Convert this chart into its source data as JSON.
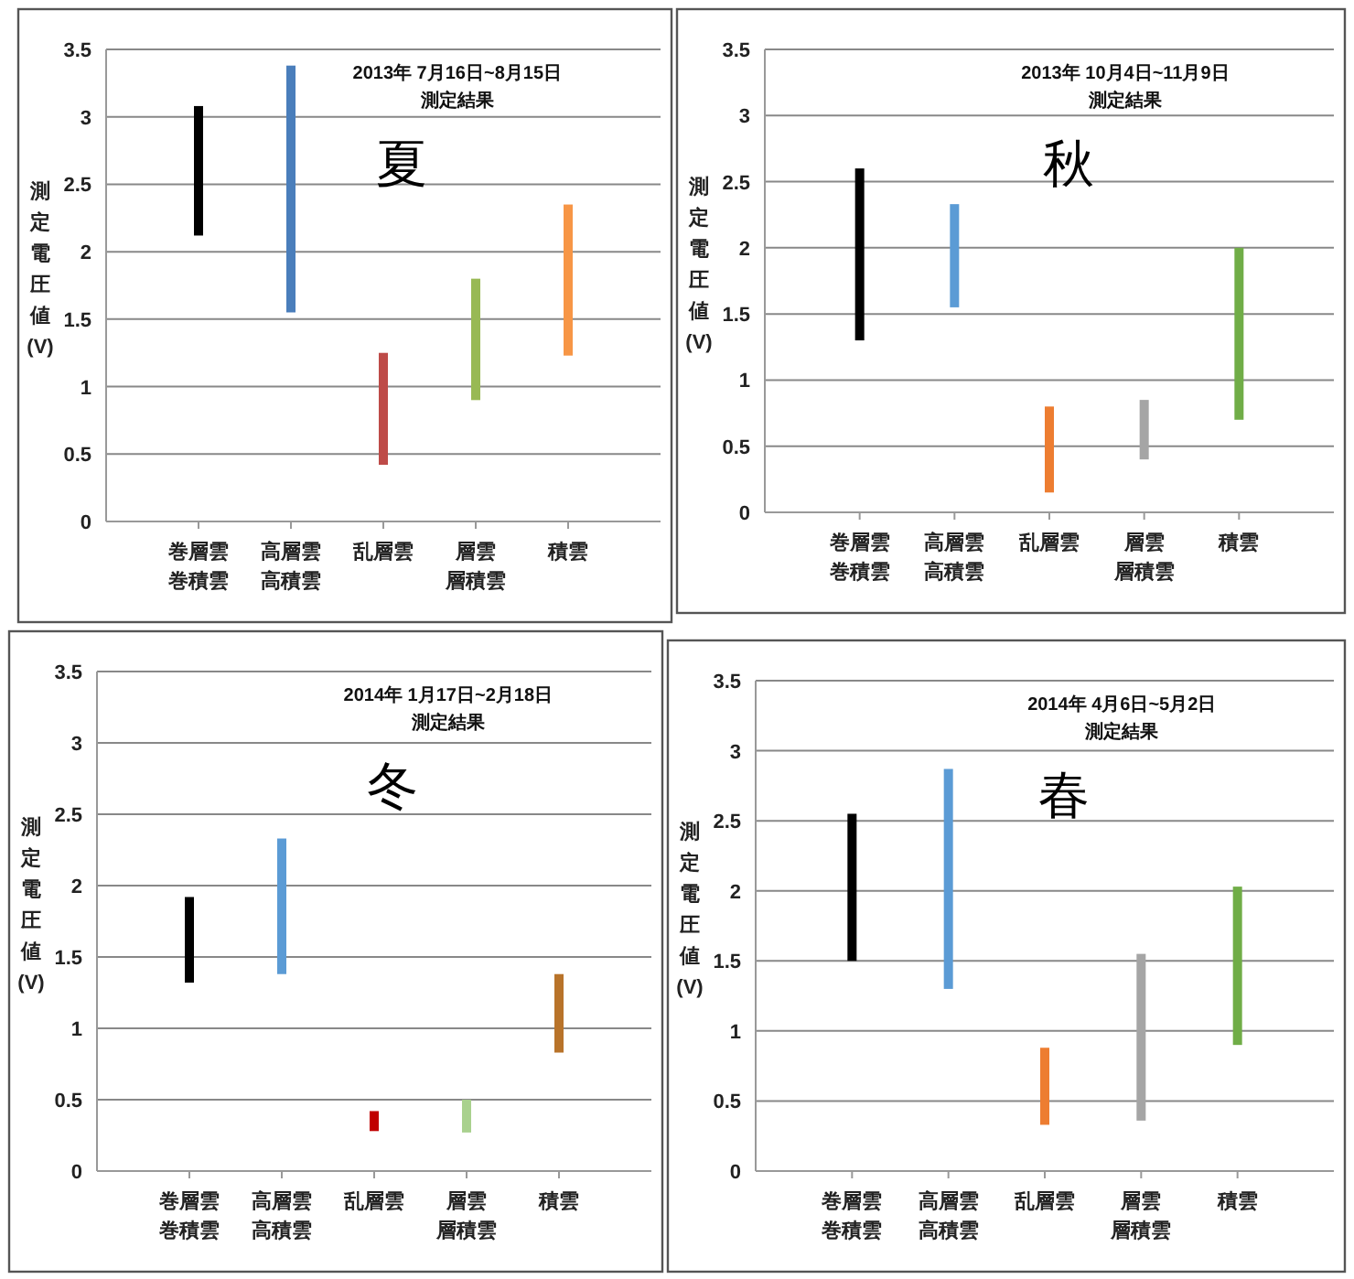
{
  "chart_data": [
    {
      "type": "bar",
      "title": "夏",
      "subtitle": "2013年 7月16日~8月15日",
      "annotations": [
        "測定結果"
      ],
      "ylabel": "測定電圧値(V)",
      "categories": [
        "巻層雲巻積雲",
        "高層雲高積雲",
        "乱層雲",
        "層雲層積雲",
        "積雲"
      ],
      "base": [
        2.12,
        1.55,
        0.42,
        0.9,
        1.23
      ],
      "values": [
        0.96,
        1.83,
        0.83,
        0.9,
        1.12
      ],
      "colors": [
        "#000000",
        "#4a7ebb",
        "#be4b48",
        "#98b954",
        "#f79646"
      ],
      "ylim": [
        0,
        3.5
      ],
      "yticks": [
        0,
        0.5,
        1,
        1.5,
        2,
        2.5,
        3,
        3.5
      ],
      "grid": "y"
    },
    {
      "type": "bar",
      "title": "秋",
      "subtitle": "2013年 10月4日~11月9日",
      "annotations": [
        "測定結果"
      ],
      "ylabel": "測定電圧値(V)",
      "categories": [
        "巻層雲巻積雲",
        "高層雲高積雲",
        "乱層雲",
        "層雲層積雲",
        "積雲"
      ],
      "base": [
        1.3,
        1.55,
        0.15,
        0.4,
        0.7
      ],
      "values": [
        1.3,
        0.78,
        0.65,
        0.45,
        1.3
      ],
      "colors": [
        "#000000",
        "#5b9bd5",
        "#ed7d31",
        "#a5a5a5",
        "#70ad47"
      ],
      "ylim": [
        0,
        3.5
      ],
      "yticks": [
        0,
        0.5,
        1,
        1.5,
        2,
        2.5,
        3,
        3.5
      ],
      "grid": "y"
    },
    {
      "type": "bar",
      "title": "冬",
      "subtitle": "2014年 1月17日~2月18日",
      "annotations": [
        "測定結果"
      ],
      "ylabel": "測定電圧値(V)",
      "categories": [
        "巻層雲巻積雲",
        "高層雲高積雲",
        "乱層雲",
        "層雲層積雲",
        "積雲"
      ],
      "base": [
        1.32,
        1.38,
        0.28,
        0.27,
        0.83
      ],
      "values": [
        0.6,
        0.95,
        0.14,
        0.23,
        0.55
      ],
      "colors": [
        "#000000",
        "#5b9bd5",
        "#c00000",
        "#a9d18e",
        "#b8732a"
      ],
      "ylim": [
        0,
        3.5
      ],
      "yticks": [
        0,
        0.5,
        1,
        1.5,
        2,
        2.5,
        3,
        3.5
      ],
      "grid": "y"
    },
    {
      "type": "bar",
      "title": "春",
      "subtitle": "2014年 4月6日~5月2日",
      "annotations": [
        "測定結果"
      ],
      "ylabel": "測定電圧値(V)",
      "categories": [
        "巻層雲巻積雲",
        "高層雲高積雲",
        "乱層雲",
        "層雲層積雲",
        "積雲"
      ],
      "base": [
        1.5,
        1.3,
        0.33,
        0.36,
        0.9
      ],
      "values": [
        1.05,
        1.57,
        0.55,
        1.19,
        1.13
      ],
      "colors": [
        "#000000",
        "#5b9bd5",
        "#ed7d31",
        "#a5a5a5",
        "#70ad47"
      ],
      "ylim": [
        0,
        3.5
      ],
      "yticks": [
        0,
        0.5,
        1,
        1.5,
        2,
        2.5,
        3,
        3.5
      ],
      "grid": "y"
    }
  ]
}
